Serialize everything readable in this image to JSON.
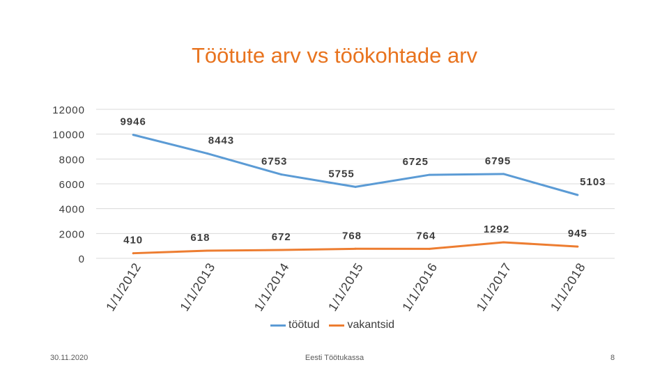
{
  "slide": {
    "title": "Töötute arv vs töökohtade arv",
    "footer_date": "30.11.2020",
    "footer_center": "Eesti Töötukassa",
    "page_number": "8"
  },
  "colors": {
    "title": "#e8731e",
    "tootud": "#5b9bd5",
    "vakantsid": "#ed7d31",
    "grid": "#d9d9d9"
  },
  "chart_data": {
    "type": "line",
    "categories": [
      "1/1/2012",
      "1/1/2013",
      "1/1/2014",
      "1/1/2015",
      "1/1/2016",
      "1/1/2017",
      "1/1/2018"
    ],
    "series": [
      {
        "name": "töötud",
        "values": [
          9946,
          8443,
          6753,
          5755,
          6725,
          6795,
          5103
        ]
      },
      {
        "name": "vakantsid",
        "values": [
          410,
          618,
          672,
          768,
          764,
          1292,
          945
        ]
      }
    ],
    "yticks": [
      "12000",
      "10000",
      "8000",
      "6000",
      "4000",
      "2000",
      "0"
    ],
    "ylim": [
      0,
      12000
    ],
    "grid": true,
    "legend": "bottom"
  }
}
